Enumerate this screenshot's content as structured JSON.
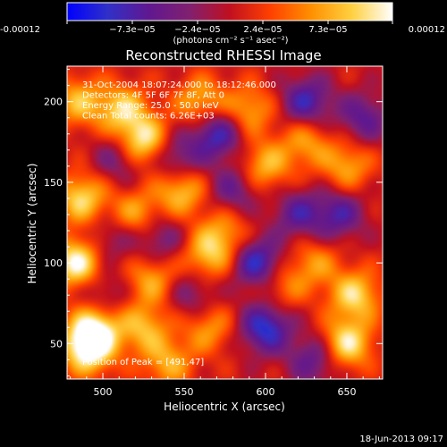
{
  "chart_data": {
    "type": "heatmap",
    "title": "Reconstructed RHESSI Image",
    "xlabel": "Heliocentric X (arcsec)",
    "ylabel": "Heliocentric Y (arcsec)",
    "xlim": [
      478,
      672
    ],
    "ylim": [
      28,
      222
    ],
    "x_ticks": [
      500,
      550,
      600,
      650
    ],
    "y_ticks": [
      50,
      100,
      150,
      200
    ],
    "colorbar": {
      "range": [
        -0.00012,
        0.00012
      ],
      "tick_labels": [
        "-0.00012",
        "−7.3e−05",
        "−2.4e−05",
        "2.4e−05",
        "7.3e−05",
        "0.00012"
      ],
      "unit_label": "(photons cm⁻² s⁻¹ asec⁻²)",
      "colors": [
        "#0000ff",
        "#3030c8",
        "#601890",
        "#802070",
        "#c01020",
        "#ff4000",
        "#ff9000",
        "#ffd040",
        "#ffffff"
      ]
    },
    "info_lines": [
      "31-Oct-2004 18:07:24.000 to 18:12:46.000",
      "Detectors: 4F 5F 6F 7F 8F, Att 0",
      "Energy Range: 25.0 - 50.0 keV",
      "Clean     Total counts: 6.26E+03"
    ],
    "peak_label": "Position of Peak = [491,47]",
    "blobs": [
      {
        "x": 491,
        "y": 47,
        "v": 1.0
      },
      {
        "x": 484,
        "y": 100,
        "v": 0.95
      },
      {
        "x": 495,
        "y": 60,
        "v": 0.8
      },
      {
        "x": 487,
        "y": 140,
        "v": 0.75
      },
      {
        "x": 525,
        "y": 175,
        "v": 0.9
      },
      {
        "x": 512,
        "y": 195,
        "v": 0.7
      },
      {
        "x": 485,
        "y": 200,
        "v": 0.6
      },
      {
        "x": 520,
        "y": 130,
        "v": 0.55
      },
      {
        "x": 548,
        "y": 145,
        "v": 0.7
      },
      {
        "x": 560,
        "y": 200,
        "v": 0.6
      },
      {
        "x": 590,
        "y": 195,
        "v": 0.55
      },
      {
        "x": 600,
        "y": 160,
        "v": 0.6
      },
      {
        "x": 625,
        "y": 175,
        "v": 0.5
      },
      {
        "x": 650,
        "y": 160,
        "v": 0.55
      },
      {
        "x": 565,
        "y": 105,
        "v": 0.65
      },
      {
        "x": 530,
        "y": 90,
        "v": 0.55
      },
      {
        "x": 525,
        "y": 60,
        "v": 0.6
      },
      {
        "x": 540,
        "y": 38,
        "v": 0.55
      },
      {
        "x": 565,
        "y": 60,
        "v": 0.5
      },
      {
        "x": 655,
        "y": 80,
        "v": 0.75
      },
      {
        "x": 650,
        "y": 50,
        "v": 0.85
      },
      {
        "x": 630,
        "y": 100,
        "v": 0.45
      },
      {
        "x": 610,
        "y": 85,
        "v": 0.4
      },
      {
        "x": 575,
        "y": 120,
        "v": 0.45
      },
      {
        "x": 600,
        "y": 60,
        "v": -0.85
      },
      {
        "x": 595,
        "y": 100,
        "v": -0.8
      },
      {
        "x": 570,
        "y": 180,
        "v": -0.75
      },
      {
        "x": 625,
        "y": 200,
        "v": -0.7
      },
      {
        "x": 545,
        "y": 165,
        "v": -0.55
      },
      {
        "x": 645,
        "y": 130,
        "v": -0.6
      },
      {
        "x": 660,
        "y": 190,
        "v": -0.55
      },
      {
        "x": 535,
        "y": 115,
        "v": -0.45
      },
      {
        "x": 510,
        "y": 165,
        "v": -0.45
      },
      {
        "x": 580,
        "y": 145,
        "v": -0.5
      },
      {
        "x": 620,
        "y": 130,
        "v": -0.55
      },
      {
        "x": 555,
        "y": 80,
        "v": -0.4
      },
      {
        "x": 630,
        "y": 40,
        "v": -0.55
      },
      {
        "x": 505,
        "y": 115,
        "v": -0.35
      },
      {
        "x": 500,
        "y": 80,
        "v": -0.35
      }
    ]
  },
  "footer": {
    "timestamp": "18-Jun-2013 09:17"
  }
}
